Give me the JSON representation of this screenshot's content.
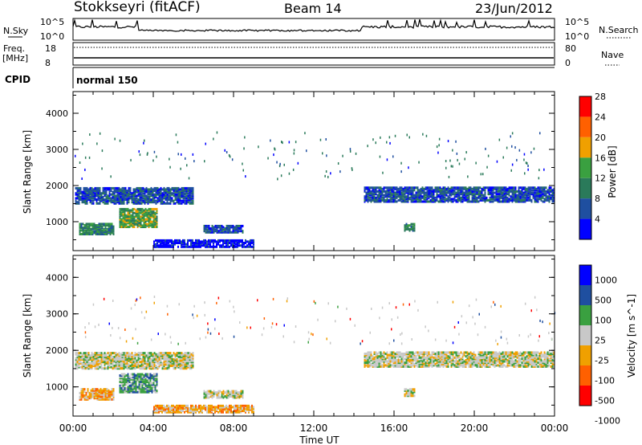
{
  "header": {
    "station": "Stokkseyri (fitACF)",
    "beam": "Beam 14",
    "date": "23/Jun/2012"
  },
  "summary_panels": {
    "nsky_label": "N.Sky",
    "nsearch_label": "N.Search",
    "nsky_ticks": [
      "10^5",
      "10^0"
    ],
    "freq_label": "Freq.",
    "freq_unit": "[MHz]",
    "freq_ticks": [
      "18",
      "8"
    ],
    "nave_label": "Nave",
    "nave_ticks": [
      "80",
      "0"
    ],
    "cpid_label": "CPID",
    "cpid_value": "normal 150"
  },
  "colors": {
    "power": [
      "#0000ff",
      "#1f4fa0",
      "#2a7a5a",
      "#3aa040",
      "#f0a000",
      "#ff6000",
      "#ff0000"
    ],
    "velocity": [
      "#0000ff",
      "#1f4fa0",
      "#3aa040",
      "#c8c8c8",
      "#f0a000",
      "#ff6000",
      "#ff0000"
    ],
    "ground_scatter": "#bebebe"
  },
  "chart_data": [
    {
      "type": "heatmap",
      "name": "power",
      "ylabel": "Slant Range [km]",
      "y_ticks": [
        1000,
        2000,
        3000,
        4000
      ],
      "ylim": [
        200,
        4600
      ],
      "x_range_hours": [
        0,
        24
      ],
      "colorbar_label": "Power [dB]",
      "colorbar_ticks": [
        4,
        8,
        12,
        16,
        20,
        24,
        28
      ],
      "regions": [
        {
          "t0": 0.1,
          "t1": 6.0,
          "r0": 1450,
          "r1": 1900,
          "level": 1
        },
        {
          "t0": 0.3,
          "t1": 2.0,
          "r0": 600,
          "r1": 900,
          "level": 2
        },
        {
          "t0": 2.3,
          "t1": 4.2,
          "r0": 800,
          "r1": 1300,
          "level": 3
        },
        {
          "t0": 6.5,
          "t1": 8.5,
          "r0": 650,
          "r1": 850,
          "level": 1
        },
        {
          "t0": 4.0,
          "t1": 9.0,
          "r0": 250,
          "r1": 450,
          "level": 0
        },
        {
          "t0": 14.5,
          "t1": 24.0,
          "r0": 1500,
          "r1": 1900,
          "level": 1
        },
        {
          "t0": 16.5,
          "t1": 17.0,
          "r0": 700,
          "r1": 900,
          "level": 2
        }
      ]
    },
    {
      "type": "heatmap",
      "name": "velocity",
      "ylabel": "Slant Range [km]",
      "y_ticks": [
        1000,
        2000,
        3000,
        4000
      ],
      "ylim": [
        200,
        4600
      ],
      "x_ticks": [
        "00:00",
        "04:00",
        "08:00",
        "12:00",
        "16:00",
        "20:00",
        "00:00"
      ],
      "xlabel": "Time UT",
      "colorbar_label": "Velocity [m s^-1]",
      "colorbar_ticks": [
        1000,
        500,
        100,
        25,
        -25,
        -100,
        -500,
        -1000
      ],
      "regions": [
        {
          "t0": 0.1,
          "t1": 6.0,
          "r0": 1450,
          "r1": 1900,
          "level": 3
        },
        {
          "t0": 0.3,
          "t1": 2.0,
          "r0": 600,
          "r1": 900,
          "level": 4
        },
        {
          "t0": 2.3,
          "t1": 4.2,
          "r0": 800,
          "r1": 1300,
          "level": 2
        },
        {
          "t0": 6.5,
          "t1": 8.5,
          "r0": 650,
          "r1": 850,
          "level": 3
        },
        {
          "t0": 4.0,
          "t1": 9.0,
          "r0": 250,
          "r1": 450,
          "level": 4
        },
        {
          "t0": 14.5,
          "t1": 24.0,
          "r0": 1500,
          "r1": 1900,
          "level": 3
        },
        {
          "t0": 16.5,
          "t1": 17.0,
          "r0": 700,
          "r1": 900,
          "level": 3
        }
      ]
    }
  ]
}
